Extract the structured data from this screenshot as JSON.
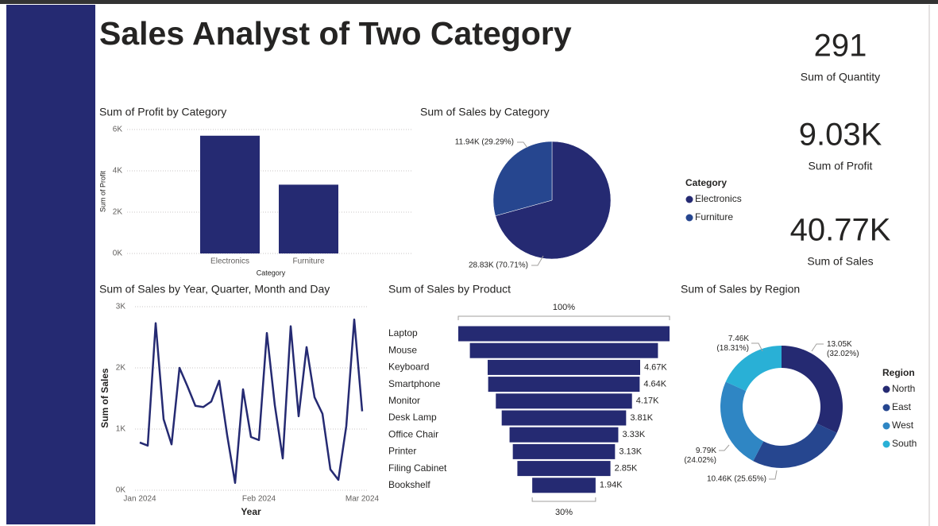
{
  "title": "Sales Analyst of Two Category",
  "cards": [
    {
      "value": 291,
      "label": "Sum of Quantity"
    },
    {
      "value": 9030,
      "value_label": "9.03K",
      "label": "Sum of Profit"
    },
    {
      "value": 40770,
      "value_label": "40.77K",
      "label": "Sum of Sales"
    }
  ],
  "chart_data": [
    {
      "type": "bar",
      "title": "Sum of Profit by Category",
      "categories": [
        "Electronics",
        "Furniture"
      ],
      "values": [
        5700,
        3330
      ],
      "color": "#252a72",
      "ylim": [
        0,
        6000
      ],
      "yticks": [
        {
          "value": 0,
          "label": "0K"
        },
        {
          "value": 2000,
          "label": "2K"
        },
        {
          "value": 4000,
          "label": "4K"
        },
        {
          "value": 6000,
          "label": "6K"
        }
      ],
      "x_label": "Category",
      "y_label": "Sum of Profit",
      "grid": true
    },
    {
      "type": "pie",
      "title": "Sum of Sales by Category",
      "categories": [
        "Electronics",
        "Furniture"
      ],
      "values": [
        28830,
        11940
      ],
      "value_labels": [
        "28.83K (70.71%)",
        "11.94K (29.29%)"
      ],
      "colors": [
        "#252a72",
        "#26468f"
      ],
      "legend_title": "Category"
    },
    {
      "type": "line",
      "title": "Sum of Sales by Year, Quarter, Month and Day",
      "categories": [
        "Jan 2024",
        null,
        null,
        null,
        null,
        null,
        null,
        null,
        null,
        null,
        null,
        null,
        null,
        null,
        null,
        "Feb 2024",
        null,
        null,
        null,
        null,
        null,
        null,
        null,
        null,
        null,
        null,
        null,
        null,
        "Mar 2024"
      ],
      "values": [
        780,
        730,
        2730,
        1160,
        750,
        2000,
        1700,
        1380,
        1360,
        1450,
        1790,
        900,
        120,
        1650,
        870,
        820,
        2570,
        1390,
        520,
        2680,
        1210,
        2340,
        1520,
        1250,
        340,
        170,
        1050,
        2790,
        1290
      ],
      "color": "#252a72",
      "ylim": [
        0,
        3000
      ],
      "yticks": [
        {
          "value": 0,
          "label": "0K"
        },
        {
          "value": 1000,
          "label": "1K"
        },
        {
          "value": 2000,
          "label": "2K"
        },
        {
          "value": 3000,
          "label": "3K"
        }
      ],
      "x_label": "Year",
      "y_label": "Sum of Sales",
      "grid": true
    },
    {
      "type": "funnel",
      "title": "Sum of Sales by Product",
      "categories": [
        "Laptop",
        "Mouse",
        "Keyboard",
        "Smartphone",
        "Monitor",
        "Desk Lamp",
        "Office Chair",
        "Printer",
        "Filing Cabinet",
        "Bookshelf"
      ],
      "values": [
        6470,
        5760,
        4670,
        4640,
        4170,
        3810,
        3330,
        3130,
        2850,
        1940
      ],
      "value_labels": [
        null,
        null,
        "4.67K",
        "4.64K",
        "4.17K",
        "3.81K",
        "3.33K",
        "3.13K",
        "2.85K",
        "1.94K"
      ],
      "color": "#252a72",
      "top_label": "100%",
      "bottom_label": "30%"
    },
    {
      "type": "donut",
      "title": "Sum of Sales by Region",
      "categories": [
        "North",
        "East",
        "West",
        "South"
      ],
      "values": [
        13050,
        10460,
        9790,
        7460
      ],
      "value_labels": [
        "13.05K (32.02%)",
        "10.46K (25.65%)",
        "9.79K (24.02%)",
        "7.46K (18.31%)"
      ],
      "colors": [
        "#252a72",
        "#26468f",
        "#2f86c4",
        "#29b0d6"
      ],
      "legend_title": "Region"
    }
  ]
}
